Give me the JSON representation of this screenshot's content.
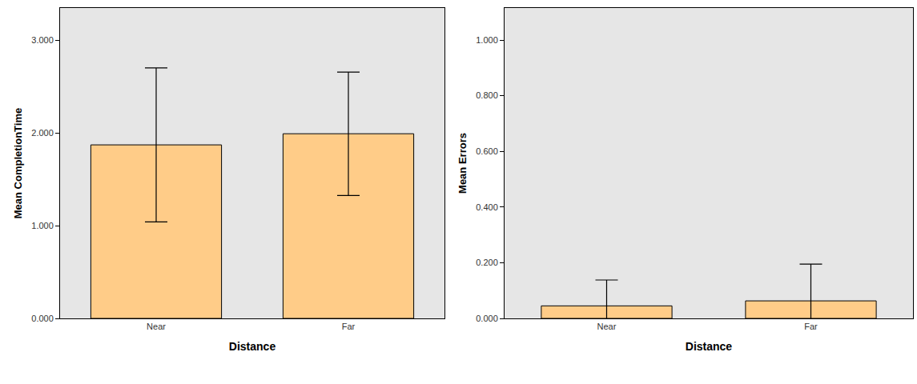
{
  "chart_data": [
    {
      "type": "bar",
      "x_label": "Distance",
      "y_label": "Mean CompletionTime",
      "categories": [
        "Near",
        "Far"
      ],
      "values": [
        1.87,
        1.99
      ],
      "errors": [
        0.83,
        0.665
      ],
      "color": "#ffcc88",
      "grid": false,
      "ylim": [
        0,
        3.345
      ],
      "yticks": [
        {
          "value": 0,
          "label": "0.000"
        },
        {
          "value": 1,
          "label": "1.000"
        },
        {
          "value": 2,
          "label": "2.000"
        },
        {
          "value": 3,
          "label": "3.000"
        }
      ]
    },
    {
      "type": "bar",
      "x_label": "Distance",
      "y_label": "Mean Errors",
      "categories": [
        "Near",
        "Far"
      ],
      "values": [
        0.045,
        0.063
      ],
      "errors": [
        0.093,
        0.132
      ],
      "color": "#ffcc88",
      "grid": false,
      "ylim": [
        0,
        1.115
      ],
      "yticks": [
        {
          "value": 0,
          "label": "0.000"
        },
        {
          "value": 0.2,
          "label": "0.200"
        },
        {
          "value": 0.4,
          "label": "0.400"
        },
        {
          "value": 0.6,
          "label": "0.600"
        },
        {
          "value": 0.8,
          "label": "0.800"
        },
        {
          "value": 1,
          "label": "1.000"
        }
      ]
    }
  ]
}
